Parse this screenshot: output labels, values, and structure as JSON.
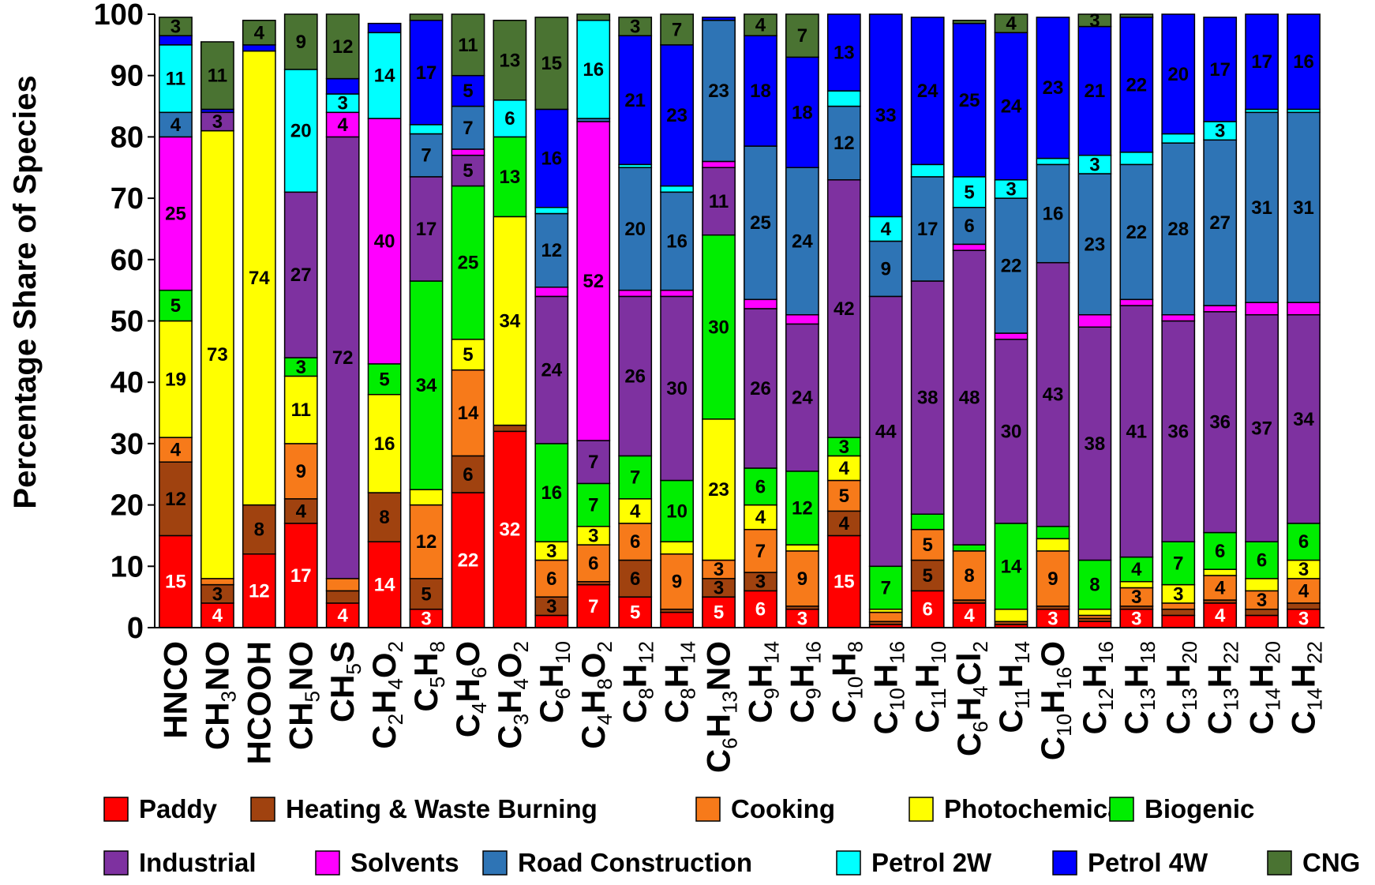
{
  "chart_data": {
    "type": "bar",
    "stacked": true,
    "ylabel": "Percentage Share of Species",
    "xlabel": "",
    "ylim": [
      0,
      100
    ],
    "yticks": [
      0,
      10,
      20,
      30,
      40,
      50,
      60,
      70,
      80,
      90,
      100
    ],
    "legend_position": "bottom",
    "categories": [
      [
        [
          "HNCO",
          ""
        ]
      ],
      [
        [
          "CH",
          ""
        ],
        [
          "3",
          "s"
        ],
        [
          "NO",
          ""
        ]
      ],
      [
        [
          "HCOOH",
          ""
        ]
      ],
      [
        [
          "CH",
          ""
        ],
        [
          "5",
          "s"
        ],
        [
          "NO",
          ""
        ]
      ],
      [
        [
          "CH",
          ""
        ],
        [
          "5",
          "s"
        ],
        [
          "S",
          ""
        ]
      ],
      [
        [
          "C",
          ""
        ],
        [
          "2",
          "s"
        ],
        [
          "H",
          ""
        ],
        [
          "4",
          "s"
        ],
        [
          "O",
          ""
        ],
        [
          "2",
          "s"
        ]
      ],
      [
        [
          "C",
          ""
        ],
        [
          "5",
          "s"
        ],
        [
          "H",
          ""
        ],
        [
          "8",
          "s"
        ]
      ],
      [
        [
          "C",
          ""
        ],
        [
          "4",
          "s"
        ],
        [
          "H",
          ""
        ],
        [
          "6",
          "s"
        ],
        [
          "O",
          ""
        ]
      ],
      [
        [
          "C",
          ""
        ],
        [
          "3",
          "s"
        ],
        [
          "H",
          ""
        ],
        [
          "4",
          "s"
        ],
        [
          "O",
          ""
        ],
        [
          "2",
          "s"
        ]
      ],
      [
        [
          "C",
          ""
        ],
        [
          "6",
          "s"
        ],
        [
          "H",
          ""
        ],
        [
          "10",
          "s"
        ]
      ],
      [
        [
          "C",
          ""
        ],
        [
          "4",
          "s"
        ],
        [
          "H",
          ""
        ],
        [
          "8",
          "s"
        ],
        [
          "O",
          ""
        ],
        [
          "2",
          "s"
        ]
      ],
      [
        [
          "C",
          ""
        ],
        [
          "8",
          "s"
        ],
        [
          "H",
          ""
        ],
        [
          "12",
          "s"
        ]
      ],
      [
        [
          "C",
          ""
        ],
        [
          "8",
          "s"
        ],
        [
          "H",
          ""
        ],
        [
          "14",
          "s"
        ]
      ],
      [
        [
          "C",
          ""
        ],
        [
          "6",
          "s"
        ],
        [
          "H",
          ""
        ],
        [
          "13",
          "s"
        ],
        [
          "NO",
          ""
        ]
      ],
      [
        [
          "C",
          ""
        ],
        [
          "9",
          "s"
        ],
        [
          "H",
          ""
        ],
        [
          "14",
          "s"
        ]
      ],
      [
        [
          "C",
          ""
        ],
        [
          "9",
          "s"
        ],
        [
          "H",
          ""
        ],
        [
          "16",
          "s"
        ]
      ],
      [
        [
          "C",
          ""
        ],
        [
          "10",
          "s"
        ],
        [
          "H",
          ""
        ],
        [
          "8",
          "s"
        ]
      ],
      [
        [
          "C",
          ""
        ],
        [
          "10",
          "s"
        ],
        [
          "H",
          ""
        ],
        [
          "16",
          "s"
        ]
      ],
      [
        [
          "C",
          ""
        ],
        [
          "11",
          "s"
        ],
        [
          "H",
          ""
        ],
        [
          "10",
          "s"
        ]
      ],
      [
        [
          "C",
          ""
        ],
        [
          "6",
          "s"
        ],
        [
          "H",
          ""
        ],
        [
          "4",
          "s"
        ],
        [
          "Cl",
          ""
        ],
        [
          "2",
          "s"
        ]
      ],
      [
        [
          "C",
          ""
        ],
        [
          "11",
          "s"
        ],
        [
          "H",
          ""
        ],
        [
          "14",
          "s"
        ]
      ],
      [
        [
          "C",
          ""
        ],
        [
          "10",
          "s"
        ],
        [
          "H",
          ""
        ],
        [
          "16",
          "s"
        ],
        [
          "O",
          ""
        ]
      ],
      [
        [
          "C",
          ""
        ],
        [
          "12",
          "s"
        ],
        [
          "H",
          ""
        ],
        [
          "16",
          "s"
        ]
      ],
      [
        [
          "C",
          ""
        ],
        [
          "13",
          "s"
        ],
        [
          "H",
          ""
        ],
        [
          "18",
          "s"
        ]
      ],
      [
        [
          "C",
          ""
        ],
        [
          "13",
          "s"
        ],
        [
          "H",
          ""
        ],
        [
          "20",
          "s"
        ]
      ],
      [
        [
          "C",
          ""
        ],
        [
          "13",
          "s"
        ],
        [
          "H",
          ""
        ],
        [
          "22",
          "s"
        ]
      ],
      [
        [
          "C",
          ""
        ],
        [
          "14",
          "s"
        ],
        [
          "H",
          ""
        ],
        [
          "20",
          "s"
        ]
      ],
      [
        [
          "C",
          ""
        ],
        [
          "14",
          "s"
        ],
        [
          "H",
          ""
        ],
        [
          "22",
          "s"
        ]
      ]
    ],
    "series": [
      {
        "name": "Paddy",
        "color": "#FF0000",
        "label_color": "#ffffff",
        "values": [
          15,
          4,
          12,
          17,
          4,
          14,
          3,
          22,
          32,
          2,
          7,
          5,
          2.5,
          5,
          6,
          3,
          15,
          0.5,
          6,
          4,
          0.5,
          3,
          1,
          3,
          2,
          4,
          2,
          3
        ],
        "labels": [
          "15",
          "4",
          "12",
          "17",
          "4",
          "14",
          "3",
          "22",
          "32",
          "",
          "7",
          "5",
          "",
          "5",
          "6",
          "3",
          "15",
          "",
          "6",
          "4",
          "",
          "3",
          "",
          "3",
          "",
          "4",
          "",
          "3"
        ]
      },
      {
        "name": "Heating & Waste Burning",
        "color": "#A0420F",
        "label_color": "#000000",
        "values": [
          12,
          3,
          8,
          4,
          2,
          8,
          5,
          6,
          1,
          3,
          0.5,
          6,
          0.5,
          3,
          3,
          0.5,
          4,
          0.5,
          5,
          0.5,
          0.5,
          0.5,
          0.5,
          0.5,
          1,
          0.5,
          1,
          1
        ],
        "labels": [
          "12",
          "3",
          "8",
          "4",
          "",
          "8",
          "5",
          "6",
          "",
          "3",
          "",
          "6",
          "",
          "3",
          "3",
          "",
          "4",
          "",
          "5",
          "",
          "",
          "",
          "",
          "",
          "",
          "",
          "",
          ""
        ]
      },
      {
        "name": "Cooking",
        "color": "#F77A1A",
        "label_color": "#000000",
        "values": [
          4,
          1,
          0,
          9,
          2,
          0,
          12,
          14,
          0,
          6,
          6,
          6,
          9,
          3,
          7,
          9,
          5,
          1.5,
          5,
          8,
          0,
          9,
          0.5,
          3,
          1,
          4,
          3,
          4
        ],
        "labels": [
          "4",
          "",
          "",
          "9",
          "",
          "",
          "12",
          "14",
          "",
          "6",
          "6",
          "6",
          "9",
          "3",
          "7",
          "9",
          "5",
          "",
          "5",
          "8",
          "",
          "9",
          "",
          "3",
          "",
          "4",
          "3",
          "4"
        ]
      },
      {
        "name": "Photochemical",
        "color": "#FFFF00",
        "label_color": "#000000",
        "values": [
          19,
          73,
          74,
          11,
          0,
          16,
          2.5,
          5,
          34,
          3,
          3,
          4,
          2,
          23,
          4,
          1,
          4,
          0.5,
          0,
          0,
          2,
          2,
          1,
          1,
          3,
          1,
          2,
          3
        ],
        "labels": [
          "19",
          "73",
          "74",
          "11",
          "",
          "16",
          "",
          "5",
          "34",
          "3",
          "3",
          "4",
          "",
          "23",
          "4",
          "",
          "4",
          "",
          "",
          "",
          "",
          "",
          "",
          "",
          "3",
          "",
          "",
          "3"
        ]
      },
      {
        "name": "Biogenic",
        "color": "#00EE00",
        "label_color": "#000000",
        "values": [
          5,
          0,
          0,
          3,
          0,
          5,
          34,
          25,
          13,
          16,
          7,
          7,
          10,
          30,
          6,
          12,
          3,
          7,
          2.5,
          1,
          14,
          2,
          8,
          4,
          7,
          6,
          6,
          6
        ],
        "labels": [
          "5",
          "",
          "",
          "3",
          "",
          "5",
          "34",
          "25",
          "13",
          "16",
          "7",
          "7",
          "10",
          "30",
          "6",
          "12",
          "3",
          "7",
          "",
          "",
          "14",
          "",
          "8",
          "4",
          "7",
          "6",
          "6",
          "6"
        ]
      },
      {
        "name": "Industrial",
        "color": "#7E31A0",
        "label_color": "#000000",
        "values": [
          0,
          3,
          0,
          27,
          72,
          0,
          17,
          5,
          0,
          24,
          7,
          26,
          30,
          11,
          26,
          24,
          42,
          44,
          38,
          48,
          30,
          43,
          38,
          41,
          36,
          36,
          37,
          34
        ],
        "labels": [
          "",
          "3",
          "",
          "27",
          "72",
          "",
          "17",
          "5",
          "",
          "24",
          "7",
          "26",
          "30",
          "11",
          "26",
          "24",
          "42",
          "44",
          "38",
          "48",
          "30",
          "43",
          "38",
          "41",
          "36",
          "36",
          "37",
          "34"
        ]
      },
      {
        "name": "Solvents",
        "color": "#FF00FF",
        "label_color": "#000000",
        "values": [
          25,
          0,
          0,
          0,
          4,
          40,
          0,
          1,
          0,
          1.5,
          52,
          1,
          1,
          1,
          1.5,
          1.5,
          0,
          0,
          0,
          1,
          1,
          0,
          2,
          1,
          1,
          1,
          2,
          2
        ],
        "labels": [
          "25",
          "",
          "",
          "",
          "4",
          "40",
          "",
          "",
          "",
          "",
          "52",
          "",
          "",
          "",
          "",
          "",
          "",
          "",
          "",
          "",
          "",
          "",
          "",
          "",
          "",
          "",
          "",
          ""
        ]
      },
      {
        "name": "Road Construction",
        "color": "#2E74B5",
        "label_color": "#000000",
        "values": [
          4,
          0,
          0,
          0,
          0,
          0,
          7,
          7,
          0,
          12,
          0.5,
          20,
          16,
          23,
          25,
          24,
          12,
          9,
          17,
          6,
          22,
          16,
          23,
          22,
          28,
          27,
          31,
          31
        ],
        "labels": [
          "4",
          "",
          "",
          "",
          "",
          "",
          "7",
          "7",
          "",
          "12",
          "",
          "20",
          "16",
          "23",
          "25",
          "24",
          "12",
          "9",
          "17",
          "6",
          "22",
          "16",
          "23",
          "22",
          "28",
          "27",
          "31",
          "31"
        ]
      },
      {
        "name": "Petrol 2W",
        "color": "#00FFFF",
        "label_color": "#000000",
        "values": [
          11,
          0,
          0,
          20,
          3,
          14,
          1.5,
          0,
          6,
          1,
          16,
          0.5,
          1,
          0,
          0,
          0,
          2.5,
          4,
          2,
          5,
          3,
          1,
          3,
          2,
          1.5,
          3,
          0.5,
          0.5
        ],
        "labels": [
          "11",
          "",
          "",
          "20",
          "3",
          "14",
          "",
          "",
          "6",
          "",
          "16",
          "",
          "",
          "",
          "",
          "",
          "",
          "4",
          "",
          "5",
          "3",
          "",
          "3",
          "",
          "",
          "3",
          "",
          ""
        ]
      },
      {
        "name": "Petrol 4W",
        "color": "#0000FF",
        "label_color": "#000000",
        "values": [
          1.5,
          0.5,
          1,
          0,
          2.5,
          1.5,
          17,
          5,
          0,
          16,
          0,
          21,
          23,
          0.5,
          18,
          18,
          13,
          33,
          24,
          25,
          24,
          23,
          21,
          22,
          20,
          17,
          17,
          16
        ],
        "labels": [
          "",
          "",
          "",
          "",
          "",
          "",
          "17",
          "5",
          "",
          "16",
          "",
          "21",
          "23",
          "",
          "18",
          "18",
          "13",
          "33",
          "24",
          "25",
          "24",
          "23",
          "21",
          "22",
          "20",
          "17",
          "17",
          "16"
        ]
      },
      {
        "name": "CNG",
        "color": "#4A7332",
        "label_color": "#000000",
        "values": [
          3,
          11,
          4,
          9,
          12,
          0,
          1.5,
          11,
          13,
          15,
          1,
          3,
          7,
          0,
          4,
          7,
          0,
          0,
          0,
          0.5,
          4,
          0,
          3,
          1,
          0,
          0,
          0,
          0
        ],
        "labels": [
          "3",
          "11",
          "4",
          "9",
          "12",
          "",
          "",
          "11",
          "13",
          "15",
          "",
          "3",
          "7",
          "",
          "4",
          "7",
          "",
          "",
          "",
          "",
          "4",
          "",
          "3",
          "",
          "",
          "",
          "",
          ""
        ]
      }
    ]
  }
}
